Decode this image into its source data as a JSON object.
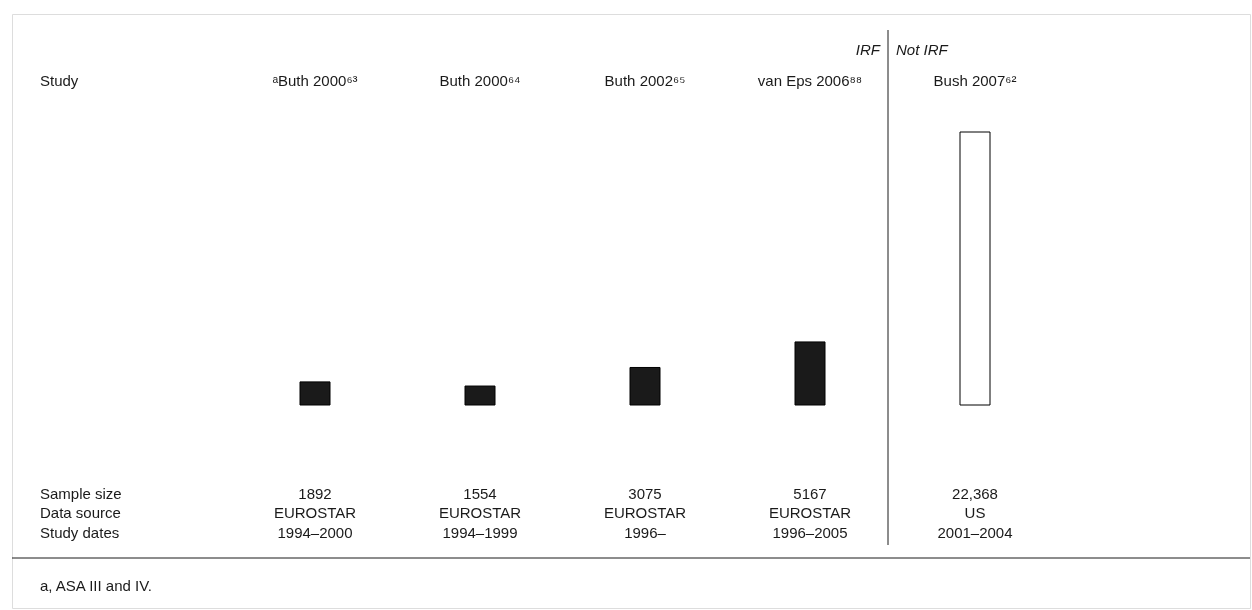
{
  "chart_data": {
    "type": "bar",
    "categories": [
      "ᵃButh 2000⁶³",
      "Buth 2000⁶⁴",
      "Buth 2002⁶⁵",
      "van Eps 2006⁸⁸",
      "Bush 2007⁶²"
    ],
    "values": [
      1892,
      1554,
      3075,
      5167,
      22368
    ],
    "colors": [
      "#1a1a1a",
      "#1a1a1a",
      "#1a1a1a",
      "#1a1a1a",
      "#ffffff"
    ],
    "value_labels": [
      "1892",
      "1554",
      "3075",
      "5167",
      "22,368"
    ],
    "ylim": [
      0,
      22368
    ],
    "annotations": [
      "Study",
      "Sample size",
      "Data source",
      "Study dates",
      "EUROSTAR",
      "EUROSTAR",
      "EUROSTAR",
      "EUROSTAR",
      "US",
      "1994–2000",
      "1994–1999",
      "1996–",
      "1996–2005",
      "2001–2004",
      "IRF",
      "Not IRF",
      "a, ASA III and IV."
    ]
  }
}
